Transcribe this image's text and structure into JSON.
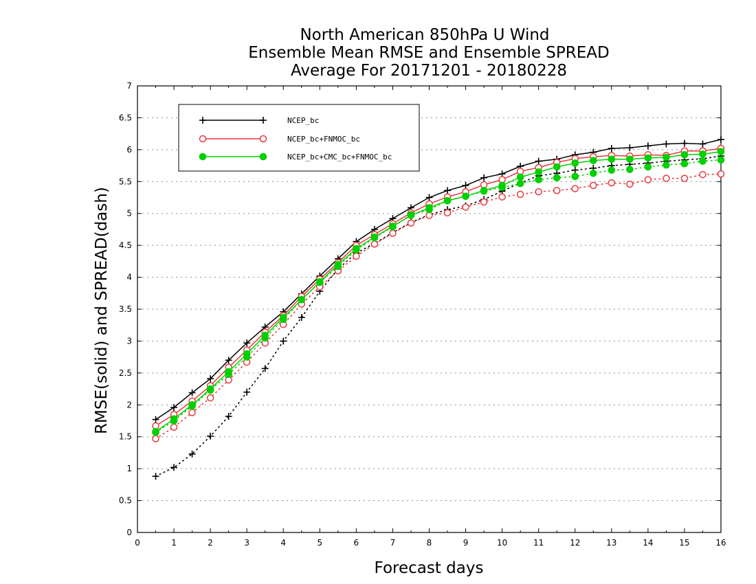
{
  "chart_data": {
    "type": "line",
    "title": [
      "North American 850hPa U Wind",
      "Ensemble Mean RMSE and Ensemble SPREAD",
      "Average For 20171201 - 20180228"
    ],
    "xlabel": "Forecast days",
    "ylabel": "RMSE(solid) and SPREAD(dash)",
    "xlim": [
      0,
      16
    ],
    "ylim": [
      0,
      7
    ],
    "x_ticks": [
      "0",
      "1",
      "2",
      "3",
      "4",
      "5",
      "6",
      "7",
      "8",
      "9",
      "10",
      "11",
      "12",
      "13",
      "14",
      "15",
      "16"
    ],
    "y_ticks": [
      "0",
      "0.5",
      "1",
      "1.5",
      "2",
      "2.5",
      "3",
      "3.5",
      "4",
      "4.5",
      "5",
      "5.5",
      "6",
      "6.5",
      "7"
    ],
    "grid": "horizontal dotted",
    "legend_position": "top-left",
    "x": [
      0.5,
      1,
      1.5,
      2,
      2.5,
      3,
      3.5,
      4,
      4.5,
      5,
      5.5,
      6,
      6.5,
      7,
      7.5,
      8,
      8.5,
      9,
      9.5,
      10,
      10.5,
      11,
      11.5,
      12,
      12.5,
      13,
      13.5,
      14,
      14.5,
      15,
      15.5,
      16
    ],
    "series": [
      {
        "name": "NCEP_bc",
        "color": "#000000",
        "marker": "plus",
        "rmse": [
          1.77,
          1.96,
          2.19,
          2.41,
          2.7,
          2.97,
          3.22,
          3.46,
          3.74,
          4.02,
          4.29,
          4.56,
          4.75,
          4.92,
          5.09,
          5.25,
          5.36,
          5.44,
          5.56,
          5.62,
          5.74,
          5.82,
          5.85,
          5.92,
          5.96,
          6.02,
          6.03,
          6.06,
          6.09,
          6.1,
          6.09,
          6.16
        ],
        "spread": [
          0.88,
          1.02,
          1.23,
          1.51,
          1.82,
          2.2,
          2.57,
          3.0,
          3.37,
          3.78,
          4.13,
          4.38,
          4.53,
          4.7,
          4.86,
          4.98,
          5.06,
          5.12,
          5.22,
          5.35,
          5.48,
          5.59,
          5.63,
          5.68,
          5.71,
          5.75,
          5.77,
          5.79,
          5.82,
          5.84,
          5.86,
          5.9
        ]
      },
      {
        "name": "NCEP_bc+FNMOC_bc",
        "color": "#e8383d",
        "marker": "open-circle",
        "rmse": [
          1.67,
          1.85,
          2.06,
          2.3,
          2.59,
          2.86,
          3.14,
          3.4,
          3.7,
          3.97,
          4.23,
          4.5,
          4.67,
          4.84,
          5.01,
          5.15,
          5.26,
          5.34,
          5.45,
          5.53,
          5.66,
          5.72,
          5.8,
          5.86,
          5.89,
          5.91,
          5.9,
          5.92,
          5.91,
          5.98,
          5.98,
          6.02
        ],
        "spread": [
          1.47,
          1.65,
          1.88,
          2.11,
          2.39,
          2.67,
          2.97,
          3.26,
          3.58,
          3.85,
          4.1,
          4.33,
          4.52,
          4.69,
          4.85,
          4.97,
          5.01,
          5.1,
          5.18,
          5.26,
          5.3,
          5.34,
          5.36,
          5.39,
          5.44,
          5.48,
          5.46,
          5.53,
          5.55,
          5.55,
          5.61,
          5.62
        ]
      },
      {
        "name": "NCEP_bc+CMC_bc+FNMOC_bc",
        "color": "#00d000",
        "marker": "filled-circle",
        "rmse": [
          1.58,
          1.78,
          2.0,
          2.25,
          2.52,
          2.8,
          3.09,
          3.37,
          3.65,
          3.93,
          4.2,
          4.45,
          4.63,
          4.8,
          4.97,
          5.09,
          5.2,
          5.27,
          5.36,
          5.44,
          5.57,
          5.65,
          5.73,
          5.79,
          5.83,
          5.85,
          5.85,
          5.87,
          5.88,
          5.92,
          5.93,
          5.97
        ],
        "spread": [
          1.57,
          1.75,
          1.98,
          2.23,
          2.48,
          2.75,
          3.05,
          3.34,
          3.65,
          3.92,
          4.17,
          4.43,
          4.62,
          4.79,
          4.98,
          5.06,
          5.2,
          5.27,
          5.35,
          5.41,
          5.47,
          5.53,
          5.56,
          5.58,
          5.63,
          5.68,
          5.69,
          5.73,
          5.76,
          5.78,
          5.82,
          5.84
        ]
      }
    ]
  }
}
